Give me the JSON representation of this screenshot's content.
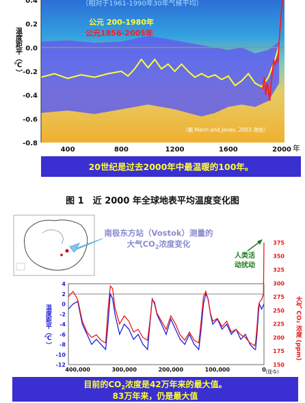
{
  "figure1": {
    "subtitle": "（相对于1961-1990年30年气候平均）",
    "ylabel": "温度距平（℃）",
    "legend": [
      {
        "label": "公元 200-1980年",
        "color": "#ffff33"
      },
      {
        "label": "公元1856-2005年",
        "color": "#ff1a1a"
      }
    ],
    "credit": "（据 Mann and Jones, 2003 改绘）",
    "xunit": "年",
    "banner": "20世纪是过去2000年中最温暖的100年。",
    "caption": "图 1　近 2000 年全球地表平均温度变化图"
  },
  "figure2": {
    "title_line1": "南极东方站（Vostok）测量的",
    "title_line2_pre": "大气CO",
    "title_line2_sub": "2",
    "title_line2_post": "浓度变化",
    "annotation_line1": "人类活",
    "annotation_line2": "动扰动",
    "ylabel_left": "温度距平（℃）",
    "ylabel_right": "大气 CO₂ 浓度 (ppm)",
    "now_label": "(现今)",
    "banner_line1_pre": "目前的CO",
    "banner_line1_sub": "2",
    "banner_line1_post": "浓度是42万年来的最大值。",
    "banner_line2": "83万年来，仍是最大值"
  },
  "chart_data": [
    {
      "type": "line",
      "ylim": [
        -0.8,
        0.4
      ],
      "xlim": [
        200,
        2020
      ],
      "xticks": [
        400,
        800,
        1200,
        1600,
        2000
      ],
      "yticks": [
        -0.8,
        -0.6,
        -0.4,
        -0.2,
        0.0,
        0.2,
        0.4
      ],
      "reference_line": 0.0,
      "series": [
        {
          "name": "公元 200-1980年",
          "x": [
            200,
            300,
            400,
            500,
            600,
            700,
            800,
            850,
            900,
            950,
            1000,
            1050,
            1100,
            1150,
            1200,
            1250,
            1300,
            1350,
            1400,
            1450,
            1500,
            1550,
            1600,
            1650,
            1700,
            1750,
            1800,
            1850,
            1900,
            1950,
            1980
          ],
          "y": [
            -0.25,
            -0.22,
            -0.26,
            -0.23,
            -0.25,
            -0.22,
            -0.2,
            -0.24,
            -0.18,
            -0.1,
            -0.17,
            -0.1,
            -0.18,
            -0.14,
            -0.2,
            -0.14,
            -0.2,
            -0.25,
            -0.22,
            -0.25,
            -0.23,
            -0.27,
            -0.24,
            -0.32,
            -0.28,
            -0.22,
            -0.3,
            -0.33,
            -0.25,
            -0.1,
            0.02
          ]
        },
        {
          "name": "公元1856-2005年",
          "x": [
            1856,
            1870,
            1880,
            1890,
            1900,
            1910,
            1920,
            1930,
            1940,
            1950,
            1960,
            1970,
            1980,
            1990,
            2000,
            2005
          ],
          "y": [
            -0.35,
            -0.25,
            -0.4,
            -0.3,
            -0.35,
            -0.45,
            -0.3,
            -0.2,
            -0.1,
            -0.15,
            -0.1,
            -0.12,
            0.05,
            0.2,
            0.35,
            0.45
          ]
        },
        {
          "name": "",
          "x": [
            200,
            400,
            600,
            800,
            1000,
            1200,
            1400,
            1500,
            1600,
            1700,
            1800,
            1900,
            1980
          ],
          "upper": [
            0.05,
            0.06,
            0.04,
            0.05,
            0.1,
            0.06,
            0.02,
            0.0,
            -0.02,
            0.0,
            -0.05,
            -0.02,
            0.05
          ],
          "lower": [
            -0.55,
            -0.53,
            -0.56,
            -0.52,
            -0.48,
            -0.52,
            -0.58,
            -0.55,
            -0.5,
            -0.48,
            -0.5,
            -0.45,
            -0.3
          ]
        }
      ]
    },
    {
      "type": "line",
      "xlim": [
        420000,
        0
      ],
      "xticks": [
        400000,
        300000,
        200000,
        100000,
        0
      ],
      "ylim_left": [
        -12,
        4
      ],
      "yticks_left": [
        -12,
        -10,
        -8,
        -6,
        -4,
        -2,
        0,
        2,
        4
      ],
      "ylim_right": [
        150,
        380
      ],
      "yticks_right": [
        150,
        175,
        200,
        225,
        250,
        275,
        300,
        325,
        350,
        375
      ],
      "series": [
        {
          "name": "",
          "x": [
            420000,
            410000,
            400000,
            390000,
            380000,
            370000,
            360000,
            350000,
            340000,
            335000,
            330000,
            325000,
            320000,
            310000,
            300000,
            290000,
            280000,
            270000,
            260000,
            250000,
            245000,
            240000,
            235000,
            230000,
            220000,
            210000,
            200000,
            190000,
            180000,
            170000,
            160000,
            150000,
            140000,
            135000,
            130000,
            125000,
            120000,
            115000,
            110000,
            100000,
            90000,
            80000,
            70000,
            60000,
            50000,
            40000,
            30000,
            20000,
            18000,
            15000,
            12000,
            10000,
            5000,
            0
          ],
          "y": [
            -1,
            0,
            0.5,
            -4,
            -6,
            -8,
            -7,
            -8,
            -9,
            -4,
            2,
            1,
            -2,
            -6,
            -4,
            -5,
            -7,
            -6,
            -8,
            -9,
            -4,
            1,
            0,
            -2,
            -4,
            -6,
            -3,
            -5,
            -7,
            -8,
            -6,
            -8,
            -9,
            -5,
            0,
            2,
            1,
            -2,
            -4,
            -3,
            -5,
            -4,
            -6,
            -5,
            -7,
            -6,
            -8,
            -9,
            -9,
            -6,
            -2,
            0,
            -1,
            0
          ]
        },
        {
          "name": "",
          "x": [
            420000,
            410000,
            400000,
            390000,
            380000,
            370000,
            360000,
            350000,
            340000,
            335000,
            330000,
            325000,
            320000,
            310000,
            300000,
            290000,
            280000,
            270000,
            260000,
            250000,
            245000,
            240000,
            235000,
            230000,
            220000,
            210000,
            200000,
            190000,
            180000,
            170000,
            160000,
            150000,
            140000,
            135000,
            130000,
            125000,
            120000,
            115000,
            110000,
            100000,
            90000,
            80000,
            70000,
            60000,
            50000,
            40000,
            30000,
            20000,
            18000,
            15000,
            12000,
            10000,
            5000,
            1000,
            0
          ],
          "y": [
            275,
            285,
            270,
            230,
            210,
            200,
            205,
            195,
            190,
            250,
            295,
            290,
            255,
            225,
            240,
            230,
            210,
            215,
            200,
            195,
            230,
            270,
            265,
            245,
            230,
            215,
            240,
            225,
            205,
            195,
            210,
            195,
            190,
            230,
            275,
            285,
            270,
            245,
            230,
            235,
            220,
            230,
            210,
            215,
            205,
            200,
            190,
            185,
            190,
            220,
            255,
            265,
            270,
            280,
            375
          ]
        }
      ]
    }
  ]
}
